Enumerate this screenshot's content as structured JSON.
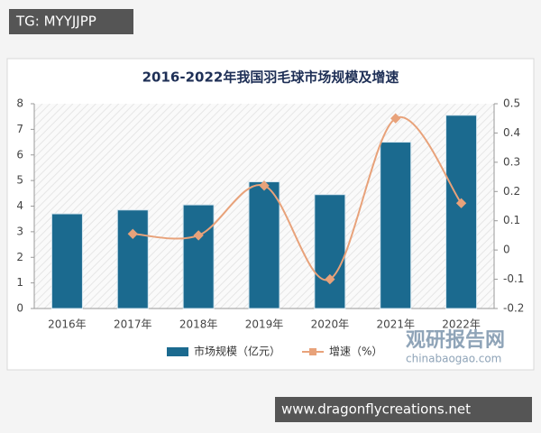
{
  "chart_data": {
    "type": "bar_line",
    "title": "2016-2022年我国羽毛球市场规模及增速",
    "categories": [
      "2016年",
      "2017年",
      "2018年",
      "2019年",
      "2020年",
      "2021年",
      "2022年"
    ],
    "series": [
      {
        "name": "市场规模（亿元）",
        "color": "#1b6a8f",
        "type": "bar",
        "values": [
          3.7,
          3.85,
          4.05,
          4.95,
          4.45,
          6.5,
          7.55
        ]
      },
      {
        "name": "增速（%）",
        "color": "#e8a27a",
        "type": "line",
        "axis": "y2",
        "values": [
          null,
          0.055,
          0.05,
          0.22,
          -0.1,
          0.45,
          0.16
        ]
      }
    ],
    "ylim": [
      0,
      8
    ],
    "yticks": [
      0,
      1,
      2,
      3,
      4,
      5,
      6,
      7,
      8
    ],
    "y2lim": [
      -0.2,
      0.5
    ],
    "y2ticks": [
      -0.2,
      -0.1,
      0,
      0.1,
      0.2,
      0.3,
      0.4,
      0.5
    ],
    "legend": "bottom"
  },
  "overlays": {
    "tag": "TG: MYYJJPP",
    "watermark": "观研报告网",
    "watermark_url": "chinabaogao.com",
    "footer": "www.dragonflycreations.net"
  }
}
